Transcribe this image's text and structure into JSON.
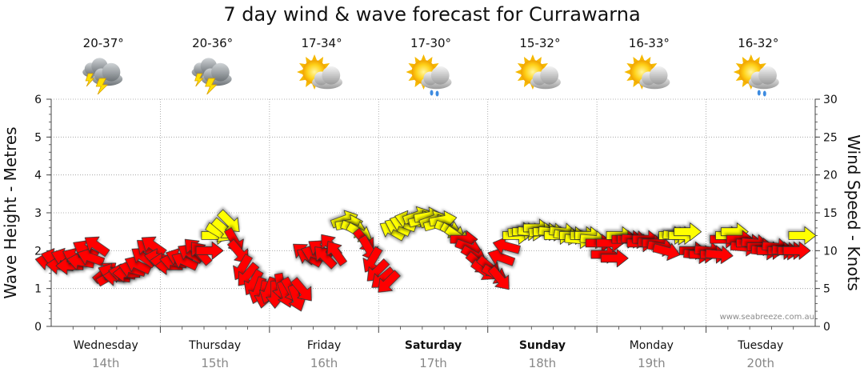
{
  "chart_data": {
    "type": "scatter",
    "title": "7 day wind & wave forecast for Currawarna",
    "ylabel_left": "Wave Height - Metres",
    "ylabel_right": "Wind Speed - Knots",
    "ylim_left": [
      0,
      6
    ],
    "yticks_left": [
      "0",
      "1",
      "2",
      "3",
      "4",
      "5",
      "6"
    ],
    "ylim_right": [
      0,
      30
    ],
    "yticks_right": [
      "0",
      "5",
      "10",
      "15",
      "20",
      "25",
      "30"
    ],
    "grid": true,
    "watermark": "www.seabreeze.com.au",
    "days": [
      {
        "name": "Wednesday",
        "date": "14th",
        "temp": "20-37°",
        "icon": "storm-icon",
        "bold": false
      },
      {
        "name": "Thursday",
        "date": "15th",
        "temp": "20-36°",
        "icon": "storm-icon",
        "bold": false
      },
      {
        "name": "Friday",
        "date": "16th",
        "temp": "17-34°",
        "icon": "partly-cloudy-icon",
        "bold": false
      },
      {
        "name": "Saturday",
        "date": "17th",
        "temp": "17-30°",
        "icon": "shower-icon",
        "bold": true
      },
      {
        "name": "Sunday",
        "date": "18th",
        "temp": "15-32°",
        "icon": "partly-cloudy-icon",
        "bold": true
      },
      {
        "name": "Monday",
        "date": "19th",
        "temp": "16-33°",
        "icon": "partly-cloudy-icon",
        "bold": false
      },
      {
        "name": "Tuesday",
        "date": "20th",
        "temp": "16-32°",
        "icon": "shower-icon",
        "bold": false
      }
    ],
    "colors": {
      "strong": "#ff0000",
      "light": "#ffff00",
      "outline": "#333333"
    },
    "wind_series": [
      {
        "name": "wind",
        "points": [
          {
            "t": 0.0,
            "kn": 8.5,
            "dir": 10,
            "c": "strong"
          },
          {
            "t": 0.05,
            "kn": 9.0,
            "dir": 15,
            "c": "strong"
          },
          {
            "t": 0.1,
            "kn": 8.0,
            "dir": 5,
            "c": "strong"
          },
          {
            "t": 0.14,
            "kn": 9.0,
            "dir": 20,
            "c": "strong"
          },
          {
            "t": 0.19,
            "kn": 8.0,
            "dir": 0,
            "c": "strong"
          },
          {
            "t": 0.24,
            "kn": 9.0,
            "dir": 25,
            "c": "strong"
          },
          {
            "t": 0.29,
            "kn": 8.5,
            "dir": 10,
            "c": "strong"
          },
          {
            "t": 0.33,
            "kn": 10.0,
            "dir": 30,
            "c": "strong"
          },
          {
            "t": 0.38,
            "kn": 9.0,
            "dir": 20,
            "c": "strong"
          },
          {
            "t": 0.43,
            "kn": 10.5,
            "dir": 35,
            "c": "strong"
          },
          {
            "t": 0.48,
            "kn": 7.0,
            "dir": 140,
            "c": "strong"
          },
          {
            "t": 0.52,
            "kn": 6.5,
            "dir": 150,
            "c": "strong"
          },
          {
            "t": 0.57,
            "kn": 7.0,
            "dir": 20,
            "c": "strong"
          },
          {
            "t": 0.62,
            "kn": 6.5,
            "dir": 5,
            "c": "strong"
          },
          {
            "t": 0.67,
            "kn": 7.0,
            "dir": 10,
            "c": "strong"
          },
          {
            "t": 0.71,
            "kn": 7.0,
            "dir": 0,
            "c": "strong"
          },
          {
            "t": 0.76,
            "kn": 7.5,
            "dir": 15,
            "c": "strong"
          },
          {
            "t": 0.81,
            "kn": 8.0,
            "dir": 25,
            "c": "strong"
          },
          {
            "t": 0.86,
            "kn": 9.0,
            "dir": 35,
            "c": "strong"
          },
          {
            "t": 0.9,
            "kn": 10.0,
            "dir": 40,
            "c": "strong"
          },
          {
            "t": 0.95,
            "kn": 10.5,
            "dir": 35,
            "c": "strong"
          },
          {
            "t": 1.0,
            "kn": 9.0,
            "dir": 10,
            "c": "strong"
          },
          {
            "t": 1.05,
            "kn": 8.5,
            "dir": 5,
            "c": "strong"
          },
          {
            "t": 1.1,
            "kn": 8.0,
            "dir": 0,
            "c": "strong"
          },
          {
            "t": 1.14,
            "kn": 8.5,
            "dir": 10,
            "c": "strong"
          },
          {
            "t": 1.19,
            "kn": 9.0,
            "dir": 20,
            "c": "strong"
          },
          {
            "t": 1.24,
            "kn": 8.5,
            "dir": 25,
            "c": "strong"
          },
          {
            "t": 1.29,
            "kn": 9.5,
            "dir": 30,
            "c": "strong"
          },
          {
            "t": 1.33,
            "kn": 10.0,
            "dir": 45,
            "c": "strong"
          },
          {
            "t": 1.38,
            "kn": 9.5,
            "dir": 50,
            "c": "strong"
          },
          {
            "t": 1.43,
            "kn": 10.0,
            "dir": 180,
            "c": "strong"
          },
          {
            "t": 1.48,
            "kn": 12.0,
            "dir": 180,
            "c": "light"
          },
          {
            "t": 1.52,
            "kn": 12.5,
            "dir": 210,
            "c": "light"
          },
          {
            "t": 1.57,
            "kn": 13.0,
            "dir": 220,
            "c": "light"
          },
          {
            "t": 1.62,
            "kn": 14.0,
            "dir": 225,
            "c": "light"
          },
          {
            "t": 1.67,
            "kn": 11.5,
            "dir": 240,
            "c": "strong"
          },
          {
            "t": 1.71,
            "kn": 10.0,
            "dir": 230,
            "c": "strong"
          },
          {
            "t": 1.76,
            "kn": 8.0,
            "dir": 300,
            "c": "strong"
          },
          {
            "t": 1.81,
            "kn": 7.0,
            "dir": 310,
            "c": "strong"
          },
          {
            "t": 1.86,
            "kn": 6.0,
            "dir": 300,
            "c": "strong"
          },
          {
            "t": 1.9,
            "kn": 5.0,
            "dir": 290,
            "c": "strong"
          },
          {
            "t": 1.95,
            "kn": 4.5,
            "dir": 280,
            "c": "strong"
          },
          {
            "t": 2.0,
            "kn": 5.0,
            "dir": 290,
            "c": "strong"
          },
          {
            "t": 2.05,
            "kn": 4.5,
            "dir": 270,
            "c": "strong"
          },
          {
            "t": 2.1,
            "kn": 5.5,
            "dir": 260,
            "c": "strong"
          },
          {
            "t": 2.14,
            "kn": 4.5,
            "dir": 250,
            "c": "strong"
          },
          {
            "t": 2.19,
            "kn": 5.0,
            "dir": 240,
            "c": "strong"
          },
          {
            "t": 2.24,
            "kn": 4.0,
            "dir": 250,
            "c": "strong"
          },
          {
            "t": 2.29,
            "kn": 5.0,
            "dir": 230,
            "c": "strong"
          },
          {
            "t": 2.33,
            "kn": 9.5,
            "dir": 40,
            "c": "strong"
          },
          {
            "t": 2.38,
            "kn": 9.0,
            "dir": 30,
            "c": "strong"
          },
          {
            "t": 2.43,
            "kn": 9.5,
            "dir": 20,
            "c": "strong"
          },
          {
            "t": 2.48,
            "kn": 10.0,
            "dir": 35,
            "c": "strong"
          },
          {
            "t": 2.52,
            "kn": 9.0,
            "dir": 45,
            "c": "strong"
          },
          {
            "t": 2.57,
            "kn": 10.5,
            "dir": 50,
            "c": "strong"
          },
          {
            "t": 2.62,
            "kn": 9.5,
            "dir": 55,
            "c": "strong"
          },
          {
            "t": 2.67,
            "kn": 14.0,
            "dir": 160,
            "c": "light"
          },
          {
            "t": 2.71,
            "kn": 13.5,
            "dir": 170,
            "c": "light"
          },
          {
            "t": 2.76,
            "kn": 13.0,
            "dir": 200,
            "c": "light"
          },
          {
            "t": 2.81,
            "kn": 12.5,
            "dir": 210,
            "c": "light"
          },
          {
            "t": 2.86,
            "kn": 11.5,
            "dir": 230,
            "c": "strong"
          },
          {
            "t": 2.9,
            "kn": 10.5,
            "dir": 240,
            "c": "strong"
          },
          {
            "t": 2.95,
            "kn": 9.0,
            "dir": 300,
            "c": "strong"
          },
          {
            "t": 3.0,
            "kn": 7.5,
            "dir": 315,
            "c": "strong"
          },
          {
            "t": 3.05,
            "kn": 6.5,
            "dir": 320,
            "c": "strong"
          },
          {
            "t": 3.1,
            "kn": 6.0,
            "dir": 315,
            "c": "strong"
          },
          {
            "t": 3.14,
            "kn": 12.5,
            "dir": 30,
            "c": "light"
          },
          {
            "t": 3.19,
            "kn": 13.0,
            "dir": 25,
            "c": "light"
          },
          {
            "t": 3.24,
            "kn": 13.5,
            "dir": 20,
            "c": "light"
          },
          {
            "t": 3.29,
            "kn": 14.0,
            "dir": 15,
            "c": "light"
          },
          {
            "t": 3.33,
            "kn": 14.5,
            "dir": 160,
            "c": "light"
          },
          {
            "t": 3.38,
            "kn": 14.0,
            "dir": 165,
            "c": "light"
          },
          {
            "t": 3.43,
            "kn": 14.5,
            "dir": 170,
            "c": "light"
          },
          {
            "t": 3.48,
            "kn": 14.0,
            "dir": 160,
            "c": "light"
          },
          {
            "t": 3.52,
            "kn": 13.5,
            "dir": 165,
            "c": "light"
          },
          {
            "t": 3.57,
            "kn": 14.0,
            "dir": 170,
            "c": "light"
          },
          {
            "t": 3.62,
            "kn": 13.0,
            "dir": 200,
            "c": "light"
          },
          {
            "t": 3.67,
            "kn": 12.5,
            "dir": 210,
            "c": "light"
          },
          {
            "t": 3.71,
            "kn": 12.0,
            "dir": 215,
            "c": "light"
          },
          {
            "t": 3.76,
            "kn": 11.5,
            "dir": 180,
            "c": "strong"
          },
          {
            "t": 3.81,
            "kn": 10.5,
            "dir": 200,
            "c": "strong"
          },
          {
            "t": 3.86,
            "kn": 9.5,
            "dir": 210,
            "c": "strong"
          },
          {
            "t": 3.9,
            "kn": 8.5,
            "dir": 220,
            "c": "strong"
          },
          {
            "t": 3.95,
            "kn": 7.5,
            "dir": 215,
            "c": "strong"
          },
          {
            "t": 4.0,
            "kn": 8.0,
            "dir": 220,
            "c": "strong"
          },
          {
            "t": 4.05,
            "kn": 7.0,
            "dir": 210,
            "c": "strong"
          },
          {
            "t": 4.1,
            "kn": 6.5,
            "dir": 230,
            "c": "strong"
          },
          {
            "t": 4.14,
            "kn": 9.0,
            "dir": 20,
            "c": "strong"
          },
          {
            "t": 4.19,
            "kn": 10.5,
            "dir": 15,
            "c": "strong"
          },
          {
            "t": 4.24,
            "kn": 12.0,
            "dir": 180,
            "c": "light"
          },
          {
            "t": 4.29,
            "kn": 12.5,
            "dir": 175,
            "c": "light"
          },
          {
            "t": 4.33,
            "kn": 12.5,
            "dir": 180,
            "c": "light"
          },
          {
            "t": 4.38,
            "kn": 12.5,
            "dir": 185,
            "c": "light"
          },
          {
            "t": 4.43,
            "kn": 13.0,
            "dir": 180,
            "c": "light"
          },
          {
            "t": 4.48,
            "kn": 12.5,
            "dir": 175,
            "c": "light"
          },
          {
            "t": 4.52,
            "kn": 12.5,
            "dir": 180,
            "c": "light"
          },
          {
            "t": 4.57,
            "kn": 12.5,
            "dir": 185,
            "c": "light"
          },
          {
            "t": 4.62,
            "kn": 12.0,
            "dir": 180,
            "c": "light"
          },
          {
            "t": 4.67,
            "kn": 12.5,
            "dir": 185,
            "c": "light"
          },
          {
            "t": 4.71,
            "kn": 12.0,
            "dir": 190,
            "c": "light"
          },
          {
            "t": 4.76,
            "kn": 12.0,
            "dir": 180,
            "c": "light"
          },
          {
            "t": 4.81,
            "kn": 11.5,
            "dir": 185,
            "c": "light"
          },
          {
            "t": 4.86,
            "kn": 12.0,
            "dir": 180,
            "c": "light"
          },
          {
            "t": 4.9,
            "kn": 12.0,
            "dir": 180,
            "c": "light"
          },
          {
            "t": 4.95,
            "kn": 11.5,
            "dir": 185,
            "c": "light"
          },
          {
            "t": 5.0,
            "kn": 11.0,
            "dir": 180,
            "c": "strong"
          },
          {
            "t": 5.05,
            "kn": 9.5,
            "dir": 180,
            "c": "strong"
          },
          {
            "t": 5.1,
            "kn": 11.0,
            "dir": 180,
            "c": "strong"
          },
          {
            "t": 5.14,
            "kn": 9.0,
            "dir": 180,
            "c": "strong"
          },
          {
            "t": 5.19,
            "kn": 12.0,
            "dir": 180,
            "c": "light"
          },
          {
            "t": 5.24,
            "kn": 11.5,
            "dir": 180,
            "c": "strong"
          },
          {
            "t": 5.29,
            "kn": 11.5,
            "dir": 180,
            "c": "strong"
          },
          {
            "t": 5.33,
            "kn": 11.5,
            "dir": 185,
            "c": "strong"
          },
          {
            "t": 5.38,
            "kn": 11.0,
            "dir": 180,
            "c": "strong"
          },
          {
            "t": 5.43,
            "kn": 11.5,
            "dir": 180,
            "c": "strong"
          },
          {
            "t": 5.48,
            "kn": 11.0,
            "dir": 185,
            "c": "strong"
          },
          {
            "t": 5.52,
            "kn": 11.0,
            "dir": 180,
            "c": "strong"
          },
          {
            "t": 5.57,
            "kn": 10.5,
            "dir": 190,
            "c": "strong"
          },
          {
            "t": 5.62,
            "kn": 10.0,
            "dir": 195,
            "c": "strong"
          },
          {
            "t": 5.67,
            "kn": 12.0,
            "dir": 180,
            "c": "light"
          },
          {
            "t": 5.71,
            "kn": 12.0,
            "dir": 185,
            "c": "light"
          },
          {
            "t": 5.76,
            "kn": 12.0,
            "dir": 180,
            "c": "light"
          },
          {
            "t": 5.81,
            "kn": 12.5,
            "dir": 180,
            "c": "light"
          },
          {
            "t": 5.86,
            "kn": 10.0,
            "dir": 180,
            "c": "strong"
          },
          {
            "t": 5.9,
            "kn": 9.5,
            "dir": 185,
            "c": "strong"
          },
          {
            "t": 5.95,
            "kn": 9.5,
            "dir": 180,
            "c": "strong"
          },
          {
            "t": 6.0,
            "kn": 10.0,
            "dir": 185,
            "c": "strong"
          },
          {
            "t": 6.05,
            "kn": 9.5,
            "dir": 180,
            "c": "strong"
          },
          {
            "t": 6.1,
            "kn": 9.5,
            "dir": 185,
            "c": "strong"
          },
          {
            "t": 6.14,
            "kn": 11.5,
            "dir": 180,
            "c": "strong"
          },
          {
            "t": 6.19,
            "kn": 12.0,
            "dir": 180,
            "c": "light"
          },
          {
            "t": 6.24,
            "kn": 12.5,
            "dir": 180,
            "c": "light"
          },
          {
            "t": 6.29,
            "kn": 11.5,
            "dir": 180,
            "c": "strong"
          },
          {
            "t": 6.33,
            "kn": 10.5,
            "dir": 185,
            "c": "strong"
          },
          {
            "t": 6.38,
            "kn": 11.0,
            "dir": 180,
            "c": "strong"
          },
          {
            "t": 6.43,
            "kn": 11.0,
            "dir": 185,
            "c": "strong"
          },
          {
            "t": 6.48,
            "kn": 10.5,
            "dir": 180,
            "c": "strong"
          },
          {
            "t": 6.52,
            "kn": 10.0,
            "dir": 185,
            "c": "strong"
          },
          {
            "t": 6.57,
            "kn": 10.0,
            "dir": 180,
            "c": "strong"
          },
          {
            "t": 6.62,
            "kn": 10.5,
            "dir": 185,
            "c": "strong"
          },
          {
            "t": 6.67,
            "kn": 10.0,
            "dir": 180,
            "c": "strong"
          },
          {
            "t": 6.71,
            "kn": 10.0,
            "dir": 185,
            "c": "strong"
          },
          {
            "t": 6.76,
            "kn": 10.0,
            "dir": 180,
            "c": "strong"
          },
          {
            "t": 6.81,
            "kn": 10.0,
            "dir": 180,
            "c": "strong"
          },
          {
            "t": 6.86,
            "kn": 12.0,
            "dir": 180,
            "c": "light"
          }
        ]
      }
    ]
  }
}
